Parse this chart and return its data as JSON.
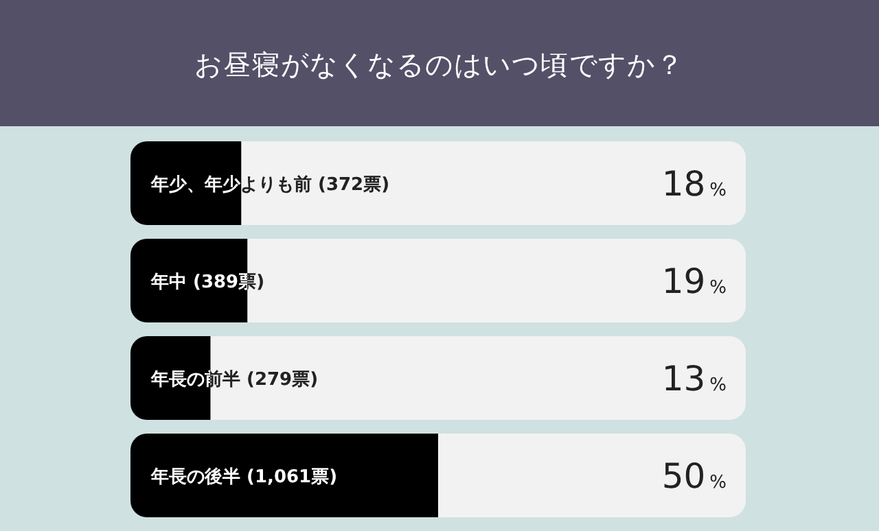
{
  "chart_data": {
    "type": "bar",
    "orientation": "horizontal",
    "title": "お昼寝がなくなるのはいつ頃ですか？",
    "categories": [
      "年少、年少よりも前 (372票)",
      "年中 (389票)",
      "年長の前半 (279票)",
      "年長の後半 (1,061票)"
    ],
    "values": [
      18,
      19,
      13,
      50
    ],
    "value_labels": [
      "18%",
      "19%",
      "13%",
      "50%"
    ],
    "color": "#000000",
    "xlim": [
      0,
      100
    ]
  }
}
